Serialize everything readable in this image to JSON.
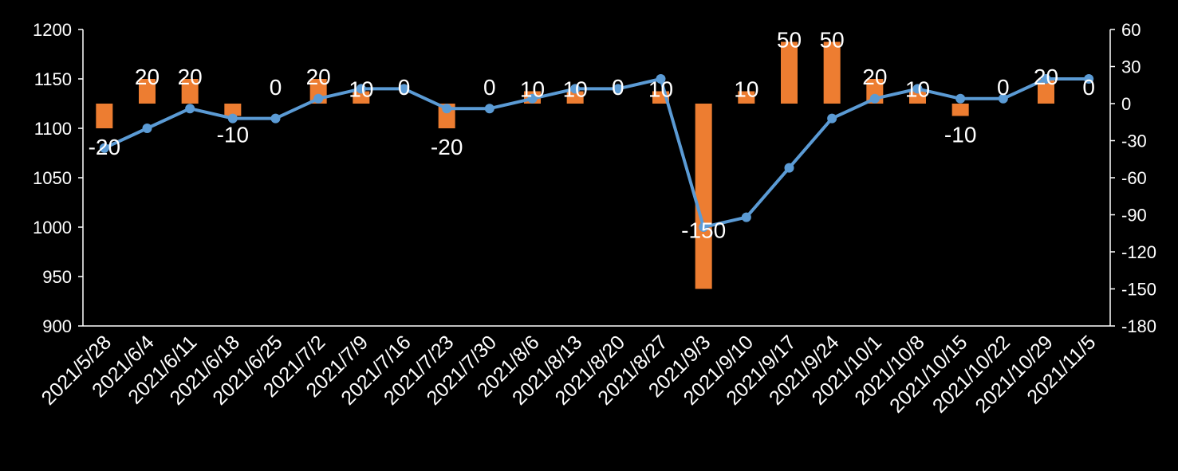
{
  "chart_data": {
    "type": "bar+line",
    "title": "",
    "background": "#000000",
    "text_color": "#ffffff",
    "axis_color": "#ffffff",
    "grid": false,
    "legend": "none",
    "categories": [
      "2021/5/28",
      "2021/6/4",
      "2021/6/11",
      "2021/6/18",
      "2021/6/25",
      "2021/7/2",
      "2021/7/9",
      "2021/7/16",
      "2021/7/23",
      "2021/7/30",
      "2021/8/6",
      "2021/8/13",
      "2021/8/20",
      "2021/8/27",
      "2021/9/3",
      "2021/9/10",
      "2021/9/17",
      "2021/9/24",
      "2021/10/1",
      "2021/10/8",
      "2021/10/15",
      "2021/10/22",
      "2021/10/29",
      "2021/11/5"
    ],
    "y_left": {
      "ylim": [
        900,
        1200
      ],
      "ticks": [
        900,
        950,
        1000,
        1050,
        1100,
        1150,
        1200
      ]
    },
    "y_right": {
      "ylim": [
        -180,
        60
      ],
      "ticks": [
        -180,
        -150,
        -120,
        -90,
        -60,
        -30,
        0,
        30,
        60
      ]
    },
    "series": [
      {
        "type": "bar",
        "axis": "right",
        "color": "#ed7d31",
        "values": [
          -20,
          20,
          20,
          -10,
          0,
          20,
          10,
          0,
          -20,
          0,
          10,
          10,
          0,
          10,
          -150,
          10,
          50,
          50,
          20,
          10,
          -10,
          0,
          20,
          0
        ],
        "labels": [
          "-20",
          "20",
          "20",
          "-10",
          "0",
          "20",
          "10",
          "0",
          "-20",
          "0",
          "10",
          "10",
          "0",
          "10",
          "-150",
          "10",
          "50",
          "50",
          "20",
          "10",
          "-10",
          "0",
          "20",
          "0"
        ]
      },
      {
        "type": "line",
        "axis": "left",
        "color": "#5b9bd5",
        "values": [
          1080,
          1100,
          1120,
          1110,
          1110,
          1130,
          1140,
          1140,
          1120,
          1120,
          1130,
          1140,
          1140,
          1150,
          1000,
          1010,
          1060,
          1110,
          1130,
          1140,
          1130,
          1130,
          1150,
          1150
        ]
      }
    ]
  }
}
